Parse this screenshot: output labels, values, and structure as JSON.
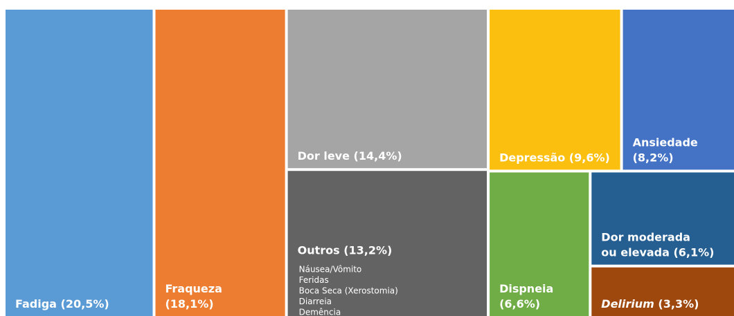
{
  "chart_data": {
    "type": "treemap",
    "items": [
      {
        "value": 20.5,
        "color": "#5b9bd5",
        "label": [
          "Fadiga (20,5%)"
        ]
      },
      {
        "value": 18.1,
        "color": "#ed7d31",
        "label": [
          "Fraqueza",
          "(18,1%)"
        ]
      },
      {
        "value": 14.4,
        "color": "#a5a5a5",
        "label": [
          "Dor leve (14,4%)"
        ]
      },
      {
        "value": 13.2,
        "color": "#636363",
        "label": [
          "Outros (13,2%)"
        ],
        "details": [
          "Náusea/Vômito",
          "Feridas",
          "Boca Seca (Xerostomia)",
          "Diarreia",
          "Demência"
        ]
      },
      {
        "value": 9.6,
        "color": "#fbbf10",
        "label": [
          "Depressão (9,6%)"
        ]
      },
      {
        "value": 8.2,
        "color": "#4472c4",
        "label": [
          "Ansiedade",
          "(8,2%)"
        ]
      },
      {
        "value": 6.6,
        "color": "#70ad47",
        "label": [
          "Dispneia",
          "(6,6%)"
        ]
      },
      {
        "value": 6.1,
        "color": "#255e91",
        "label": [
          "Dor moderada",
          "ou elevada (6,1%)"
        ]
      },
      {
        "value": 3.3,
        "color": "#9e480e",
        "label_italic": "Delirium",
        "label": [
          " (3,3%)"
        ]
      }
    ]
  }
}
